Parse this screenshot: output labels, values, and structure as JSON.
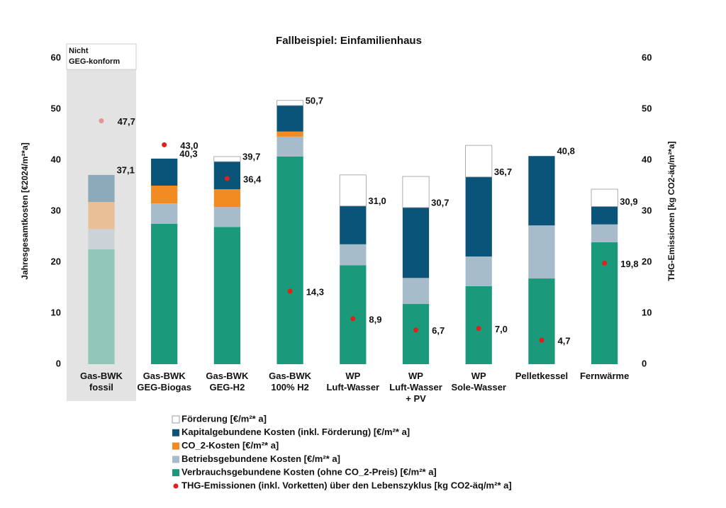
{
  "chart_data": {
    "type": "stacked-bar",
    "title": "Fallbeispiel: Einfamilienhaus",
    "y_label": "Jahresgesamtkosten [€2024/m²*a]",
    "y2_label": "THG-Emissionen [kg CO2-äq/m²*a]",
    "annotation": "Nicht GEG-konform",
    "shaded_categories": [
      0
    ],
    "categories": [
      [
        "Gas-BWK",
        "fossil"
      ],
      [
        "Gas-BWK",
        "GEG-Biogas"
      ],
      [
        "Gas-BWK",
        "GEG-H2"
      ],
      [
        "Gas-BWK",
        "100% H2"
      ],
      [
        "WP",
        "Luft-Wasser"
      ],
      [
        "WP",
        "Luft-Wasser",
        "+ PV"
      ],
      [
        "WP",
        "Sole-Wasser"
      ],
      [
        "Pelletkessel"
      ],
      [
        "Fernwärme"
      ]
    ],
    "ylim": [
      0,
      60
    ],
    "yticks": [
      0,
      10,
      20,
      30,
      40,
      50,
      60
    ],
    "y2lim": [
      0,
      60
    ],
    "y2ticks": [
      0,
      10,
      20,
      30,
      40,
      50,
      60
    ],
    "series": [
      {
        "name": "Verbrauchsgebundene Kosten (ohne CO_2-Preis) [€/m²* a]",
        "color": "#1a9a7b",
        "values": [
          22.5,
          27.5,
          26.9,
          40.7,
          19.4,
          11.8,
          15.3,
          16.8,
          23.9
        ]
      },
      {
        "name": "Betriebsgebundene Kosten  [€/m²* a]",
        "color": "#a7bccb",
        "values": [
          4.0,
          4.0,
          3.9,
          3.9,
          4.1,
          5.1,
          5.8,
          10.4,
          3.5
        ]
      },
      {
        "name": "CO_2-Kosten [€/m²* a]",
        "color": "#f28b22",
        "values": [
          5.3,
          3.5,
          3.5,
          1.0,
          0,
          0,
          0,
          0,
          0
        ]
      },
      {
        "name": "Kapitalgebundene Kosten (inkl. Förderung) [€/m²* a]",
        "color": "#0b5479",
        "values": [
          5.3,
          5.3,
          5.4,
          5.1,
          7.5,
          13.8,
          15.6,
          13.6,
          3.5
        ]
      },
      {
        "name": "Förderung [€/m²* a]",
        "color": "#ffffff",
        "values": [
          0,
          0,
          1.0,
          1.0,
          6.1,
          6.1,
          6.2,
          0,
          3.4
        ]
      }
    ],
    "totals": {
      "values": [
        37.1,
        40.3,
        39.7,
        50.7,
        31.0,
        30.7,
        36.7,
        40.8,
        30.9
      ],
      "value_labels": [
        "37,1",
        "40,3",
        "39,7",
        "50,7",
        "31,0",
        "30,7",
        "36,7",
        "40,8",
        "30,9"
      ]
    },
    "emissions": {
      "name": "THG-Emissionen (inkl. Vorketten) über den Lebenszyklus [kg CO2-äq/m²* a]",
      "color": "#e0201b",
      "axis": "y2",
      "values": [
        47.7,
        43.0,
        36.4,
        14.3,
        8.9,
        6.7,
        7.0,
        4.7,
        19.8
      ],
      "value_labels": [
        "47,7",
        "43,0",
        "36,4",
        "14,3",
        "8,9",
        "6,7",
        "7,0",
        "4,7",
        "19,8"
      ]
    }
  }
}
